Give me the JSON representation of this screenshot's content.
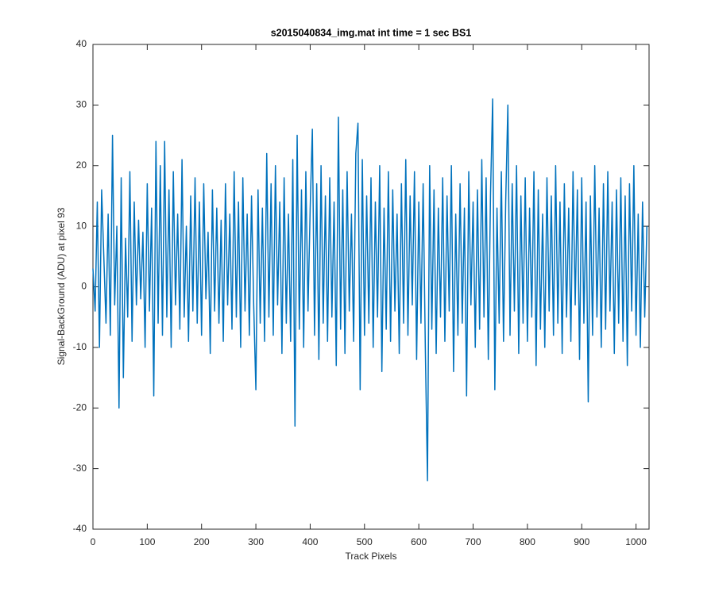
{
  "chart_data": {
    "type": "line",
    "title": "s2015040834_img.mat int time = 1 sec   BS1",
    "x_label": "Track Pixels",
    "y_label": "Signal-BackGround (ADU) at pixel 93",
    "xlim": [
      0,
      1024
    ],
    "ylim": [
      -40,
      40
    ],
    "xticks": [
      0,
      100,
      200,
      300,
      400,
      500,
      600,
      700,
      800,
      900,
      1000
    ],
    "yticks": [
      -40,
      -30,
      -20,
      -10,
      0,
      10,
      20,
      30,
      40
    ],
    "x": [
      0,
      4,
      8,
      12,
      16,
      20,
      24,
      28,
      32,
      36,
      40,
      44,
      48,
      52,
      56,
      60,
      64,
      68,
      72,
      76,
      80,
      84,
      88,
      92,
      96,
      100,
      104,
      108,
      112,
      116,
      120,
      124,
      128,
      132,
      136,
      140,
      144,
      148,
      152,
      156,
      160,
      164,
      168,
      172,
      176,
      180,
      184,
      188,
      192,
      196,
      200,
      204,
      208,
      212,
      216,
      220,
      224,
      228,
      232,
      236,
      240,
      244,
      248,
      252,
      256,
      260,
      264,
      268,
      272,
      276,
      280,
      284,
      288,
      292,
      296,
      300,
      304,
      308,
      312,
      316,
      320,
      324,
      328,
      332,
      336,
      340,
      344,
      348,
      352,
      356,
      360,
      364,
      368,
      372,
      376,
      380,
      384,
      388,
      392,
      396,
      400,
      404,
      408,
      412,
      416,
      420,
      424,
      428,
      432,
      436,
      440,
      444,
      448,
      452,
      456,
      460,
      464,
      468,
      472,
      476,
      480,
      484,
      488,
      492,
      496,
      500,
      504,
      508,
      512,
      516,
      520,
      524,
      528,
      532,
      536,
      540,
      544,
      548,
      552,
      556,
      560,
      564,
      568,
      572,
      576,
      580,
      584,
      588,
      592,
      596,
      600,
      604,
      608,
      612,
      616,
      620,
      624,
      628,
      632,
      636,
      640,
      644,
      648,
      652,
      656,
      660,
      664,
      668,
      672,
      676,
      680,
      684,
      688,
      692,
      696,
      700,
      704,
      708,
      712,
      716,
      720,
      724,
      728,
      732,
      736,
      740,
      744,
      748,
      752,
      756,
      760,
      764,
      768,
      772,
      776,
      780,
      784,
      788,
      792,
      796,
      800,
      804,
      808,
      812,
      816,
      820,
      824,
      828,
      832,
      836,
      840,
      844,
      848,
      852,
      856,
      860,
      864,
      868,
      872,
      876,
      880,
      884,
      888,
      892,
      896,
      900,
      904,
      908,
      912,
      916,
      920,
      924,
      928,
      932,
      936,
      940,
      944,
      948,
      952,
      956,
      960,
      964,
      968,
      972,
      976,
      980,
      984,
      988,
      992,
      996,
      1000,
      1004,
      1008,
      1012,
      1016,
      1020
    ],
    "series": [
      {
        "name": "signal",
        "color": "#0072bd",
        "values": [
          3,
          -4,
          14,
          -10,
          16,
          5,
          -6,
          12,
          -8,
          25,
          -3,
          10,
          -20,
          18,
          -15,
          8,
          -5,
          19,
          -9,
          14,
          -3,
          11,
          -2,
          9,
          -10,
          17,
          -4,
          13,
          -18,
          24,
          -6,
          20,
          -8,
          24,
          -5,
          16,
          -10,
          19,
          -3,
          12,
          -7,
          21,
          -5,
          10,
          -9,
          15,
          -4,
          18,
          -6,
          14,
          -8,
          17,
          -2,
          9,
          -11,
          16,
          -4,
          13,
          -6,
          11,
          -9,
          17,
          -3,
          12,
          -7,
          19,
          -5,
          14,
          -10,
          18,
          -4,
          12,
          -8,
          15,
          -3,
          -17,
          16,
          -6,
          13,
          -9,
          22,
          -5,
          17,
          -8,
          20,
          -3,
          14,
          -11,
          18,
          -6,
          12,
          -9,
          21,
          -23,
          25,
          -7,
          16,
          -10,
          19,
          -4,
          13,
          26,
          -8,
          17,
          -12,
          20,
          -6,
          15,
          -9,
          18,
          -5,
          14,
          -13,
          28,
          -7,
          16,
          -11,
          19,
          -4,
          12,
          -9,
          22,
          27,
          -17,
          21,
          -8,
          15,
          -6,
          18,
          -10,
          14,
          -5,
          20,
          -14,
          13,
          -7,
          19,
          -9,
          16,
          -4,
          12,
          -11,
          17,
          -6,
          21,
          -8,
          15,
          -3,
          19,
          -12,
          14,
          -6,
          17,
          -10,
          -32,
          20,
          -7,
          16,
          -11,
          13,
          -5,
          18,
          -9,
          15,
          -4,
          20,
          -14,
          12,
          -8,
          17,
          -6,
          13,
          -18,
          19,
          -3,
          14,
          -10,
          16,
          -7,
          21,
          -5,
          18,
          -12,
          15,
          31,
          -17,
          13,
          -6,
          19,
          -9,
          14,
          30,
          -8,
          17,
          -4,
          20,
          -11,
          15,
          -6,
          18,
          -9,
          13,
          -5,
          19,
          -13,
          16,
          -7,
          12,
          -10,
          18,
          -4,
          15,
          -8,
          20,
          -6,
          14,
          -11,
          17,
          -5,
          13,
          -9,
          19,
          -3,
          16,
          -12,
          18,
          -6,
          14,
          -19,
          15,
          -8,
          20,
          -5,
          13,
          -10,
          17,
          -7,
          19,
          -4,
          14,
          -11,
          16,
          -6,
          18,
          -9,
          15,
          -13,
          17,
          -4,
          20,
          -8,
          12,
          -10,
          14,
          -5,
          10
        ]
      }
    ]
  }
}
